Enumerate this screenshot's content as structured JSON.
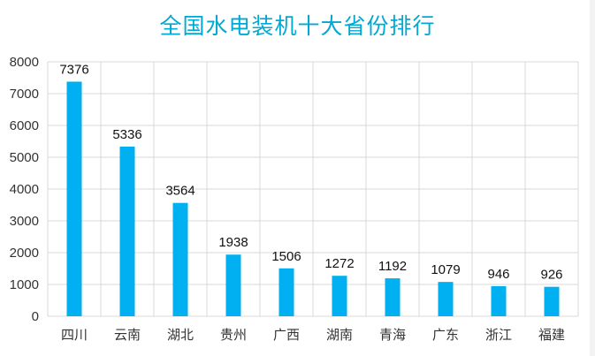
{
  "chart_data": {
    "type": "bar",
    "title": "全国水电装机十大省份排行",
    "categories": [
      "四川",
      "云南",
      "湖北",
      "贵州",
      "广西",
      "湖南",
      "青海",
      "广东",
      "浙江",
      "福建"
    ],
    "values": [
      7376,
      5336,
      3564,
      1938,
      1506,
      1272,
      1192,
      1079,
      946,
      926
    ],
    "ylim": [
      0,
      8000
    ],
    "yticks": [
      0,
      1000,
      2000,
      3000,
      4000,
      5000,
      6000,
      7000,
      8000
    ],
    "xlabel": "",
    "ylabel": "",
    "grid": true,
    "data_labels": true,
    "colors": {
      "bar": "#00b0f0",
      "title": "#00a9d4",
      "grid": "#d9d9d9"
    }
  }
}
